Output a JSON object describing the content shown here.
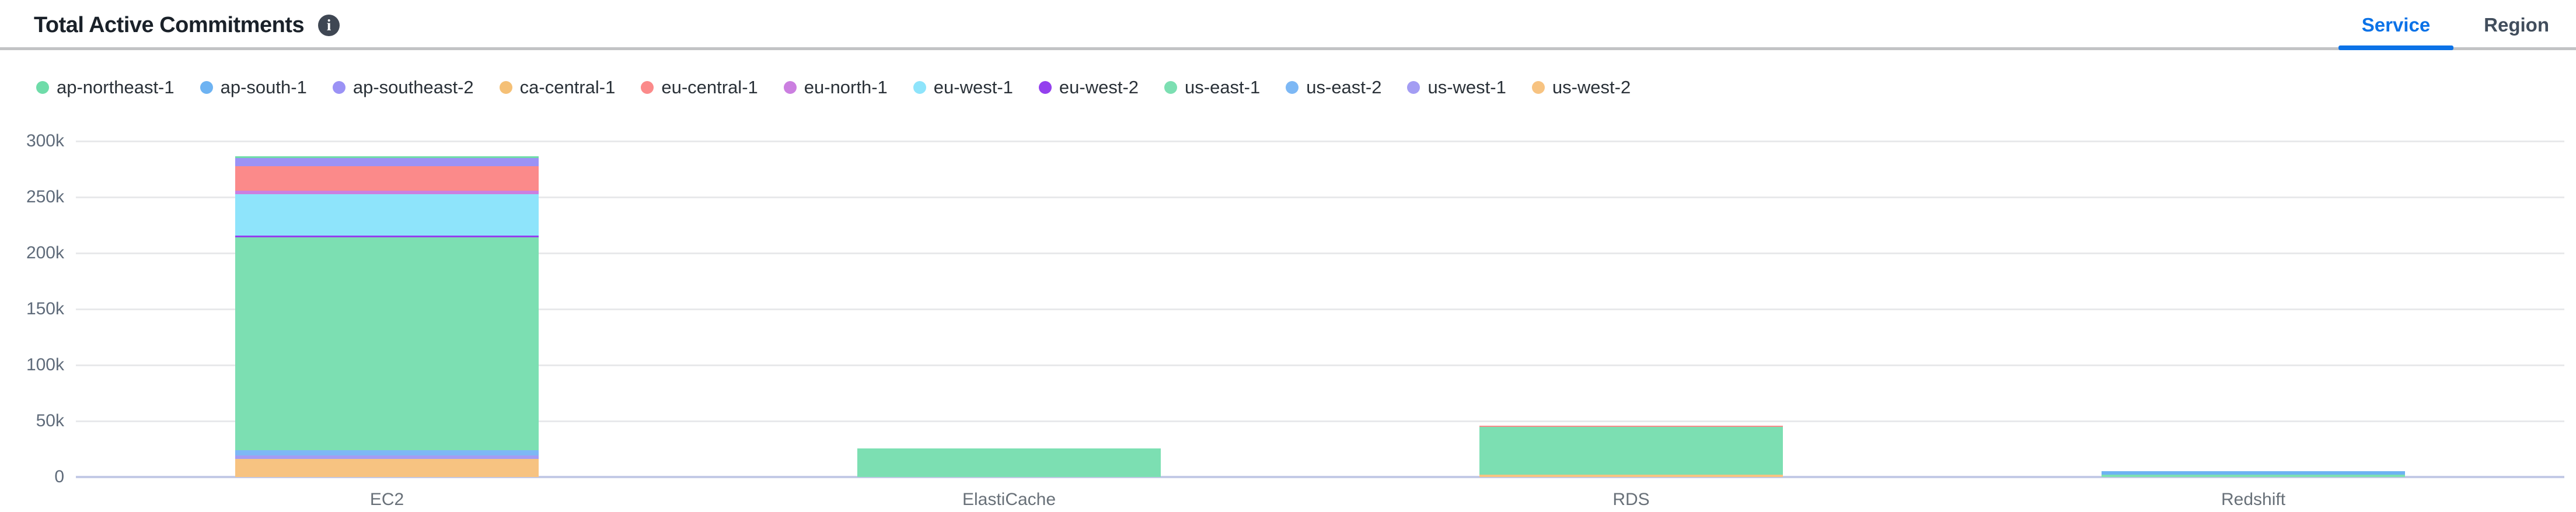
{
  "header": {
    "title": "Total Active Commitments",
    "info_icon": "i",
    "tabs": [
      {
        "label": "Service",
        "active": true
      },
      {
        "label": "Region",
        "active": false
      }
    ]
  },
  "colors": {
    "accent": "#0b72e7",
    "axis_line": "#c3cae6",
    "gridline": "#e8e9eb",
    "header_rule": "#c2c3c5"
  },
  "chart_data": {
    "type": "bar",
    "stacked": true,
    "title": "Total Active Commitments",
    "xlabel": "",
    "ylabel": "",
    "ylim": [
      0,
      300000
    ],
    "grid": "horizontal",
    "legend_position": "top",
    "categories": [
      "EC2",
      "ElastiCache",
      "RDS",
      "Redshift"
    ],
    "yticks": [
      {
        "value": 0,
        "label": "0"
      },
      {
        "value": 50000,
        "label": "50k"
      },
      {
        "value": 100000,
        "label": "100k"
      },
      {
        "value": 150000,
        "label": "150k"
      },
      {
        "value": 200000,
        "label": "200k"
      },
      {
        "value": 250000,
        "label": "250k"
      },
      {
        "value": 300000,
        "label": "300k"
      }
    ],
    "series": [
      {
        "name": "ap-northeast-1",
        "color": "#6fdca9",
        "values": [
          1600,
          0,
          0,
          0
        ]
      },
      {
        "name": "ap-south-1",
        "color": "#6eb3f2",
        "values": [
          0,
          0,
          0,
          3200
        ]
      },
      {
        "name": "ap-southeast-2",
        "color": "#9b92f5",
        "values": [
          7400,
          0,
          0,
          0
        ]
      },
      {
        "name": "ca-central-1",
        "color": "#f5c076",
        "values": [
          0,
          0,
          0,
          0
        ]
      },
      {
        "name": "eu-central-1",
        "color": "#fb8a8a",
        "values": [
          21600,
          0,
          1100,
          0
        ]
      },
      {
        "name": "eu-north-1",
        "color": "#cb7fe0",
        "values": [
          3200,
          0,
          0,
          0
        ]
      },
      {
        "name": "eu-west-1",
        "color": "#8ee4fb",
        "values": [
          36800,
          0,
          0,
          0
        ]
      },
      {
        "name": "eu-west-2",
        "color": "#9440ee",
        "values": [
          1600,
          0,
          0,
          0
        ]
      },
      {
        "name": "us-east-1",
        "color": "#7cdfb2",
        "values": [
          190000,
          25500,
          42600,
          2100
        ]
      },
      {
        "name": "us-east-2",
        "color": "#7db8f5",
        "values": [
          4700,
          0,
          0,
          0
        ]
      },
      {
        "name": "us-west-1",
        "color": "#a39df3",
        "values": [
          3200,
          0,
          0,
          0
        ]
      },
      {
        "name": "us-west-2",
        "color": "#f7c381",
        "values": [
          16300,
          0,
          2100,
          0
        ]
      }
    ],
    "stack_order": "reverse-of-series (us-west-2 at bottom, ap-northeast-1 at top)"
  }
}
